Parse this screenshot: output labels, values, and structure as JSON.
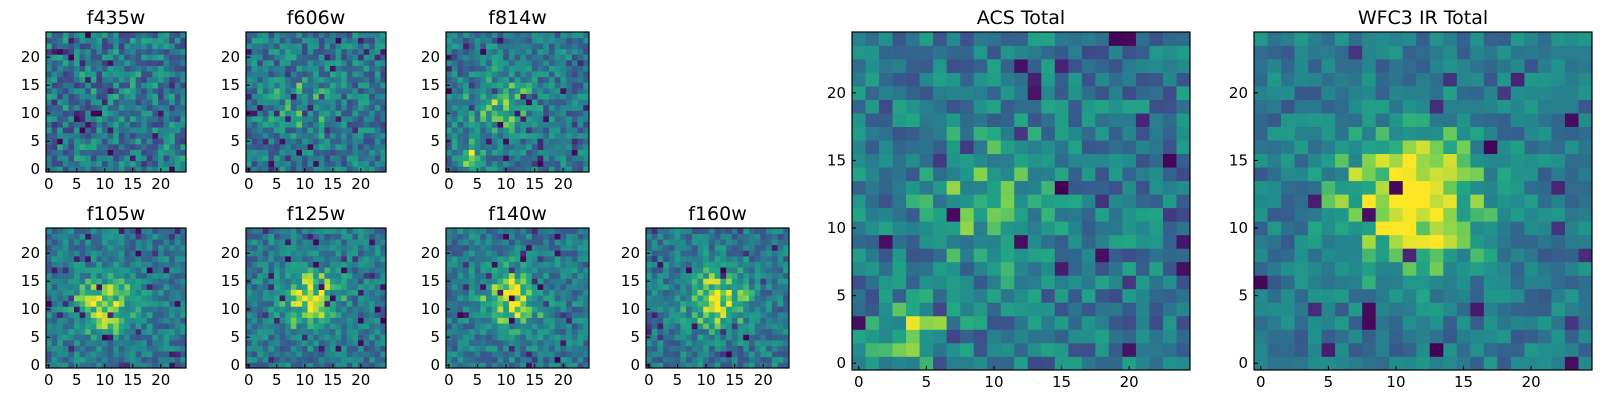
{
  "figure": {
    "background": "#ffffff"
  },
  "chart_data": [
    {
      "type": "heatmap",
      "title": "f435w",
      "grid_size": 25,
      "xlim": [
        0,
        24
      ],
      "ylim": [
        0,
        24
      ],
      "x_ticks": [
        "0",
        "5",
        "10",
        "15",
        "20"
      ],
      "y_ticks": [
        "0",
        "5",
        "10",
        "15",
        "20"
      ],
      "colormap": "viridis",
      "peak": "none",
      "center": [
        12,
        12
      ],
      "seed": 11,
      "structure": "uniform noise"
    },
    {
      "type": "heatmap",
      "title": "f606w",
      "grid_size": 25,
      "xlim": [
        0,
        24
      ],
      "ylim": [
        0,
        24
      ],
      "x_ticks": [
        "0",
        "5",
        "10",
        "15",
        "20"
      ],
      "y_ticks": [
        "0",
        "5",
        "10",
        "15",
        "20"
      ],
      "colormap": "viridis",
      "peak": "weak",
      "center": [
        10,
        12
      ],
      "seed": 23,
      "structure": "noise with faint bright spots"
    },
    {
      "type": "heatmap",
      "title": "f814w",
      "grid_size": 25,
      "xlim": [
        0,
        24
      ],
      "ylim": [
        0,
        24
      ],
      "x_ticks": [
        "0",
        "5",
        "10",
        "15",
        "20"
      ],
      "y_ticks": [
        "0",
        "5",
        "10",
        "15",
        "20"
      ],
      "colormap": "viridis",
      "peak": "moderate",
      "center": [
        9,
        12
      ],
      "seed": 37,
      "structure": "source near center, bright patch lower-left"
    },
    {
      "type": "heatmap",
      "title": "f105w",
      "grid_size": 25,
      "xlim": [
        0,
        24
      ],
      "ylim": [
        0,
        24
      ],
      "x_ticks": [
        "0",
        "5",
        "10",
        "15",
        "20"
      ],
      "y_ticks": [
        "0",
        "5",
        "10",
        "15",
        "20"
      ],
      "colormap": "viridis",
      "peak": "strong",
      "center": [
        10,
        11
      ],
      "seed": 41,
      "structure": "bright central source"
    },
    {
      "type": "heatmap",
      "title": "f125w",
      "grid_size": 25,
      "xlim": [
        0,
        24
      ],
      "ylim": [
        0,
        24
      ],
      "x_ticks": [
        "0",
        "5",
        "10",
        "15",
        "20"
      ],
      "y_ticks": [
        "0",
        "5",
        "10",
        "15",
        "20"
      ],
      "colormap": "viridis",
      "peak": "strong",
      "center": [
        11,
        12
      ],
      "seed": 53,
      "structure": "bright central source"
    },
    {
      "type": "heatmap",
      "title": "f140w",
      "grid_size": 25,
      "xlim": [
        0,
        24
      ],
      "ylim": [
        0,
        24
      ],
      "x_ticks": [
        "0",
        "5",
        "10",
        "15",
        "20"
      ],
      "y_ticks": [
        "0",
        "5",
        "10",
        "15",
        "20"
      ],
      "colormap": "viridis",
      "peak": "strong",
      "center": [
        11,
        12
      ],
      "seed": 67,
      "structure": "bright central source"
    },
    {
      "type": "heatmap",
      "title": "f160w",
      "grid_size": 25,
      "xlim": [
        0,
        24
      ],
      "ylim": [
        0,
        24
      ],
      "x_ticks": [
        "0",
        "5",
        "10",
        "15",
        "20"
      ],
      "y_ticks": [
        "0",
        "5",
        "10",
        "15",
        "20"
      ],
      "colormap": "viridis",
      "peak": "strong",
      "center": [
        12,
        12
      ],
      "seed": 79,
      "structure": "bright central source"
    },
    {
      "type": "heatmap",
      "title": "ACS Total",
      "grid_size": 25,
      "xlim": [
        0,
        24
      ],
      "ylim": [
        0,
        24
      ],
      "x_ticks": [
        "0",
        "5",
        "10",
        "15",
        "20"
      ],
      "y_ticks": [
        "0",
        "5",
        "10",
        "15",
        "20"
      ],
      "colormap": "viridis",
      "peak": "moderate",
      "center": [
        10,
        12
      ],
      "seed": 97,
      "structure": "central source, bright patch lower-left"
    },
    {
      "type": "heatmap",
      "title": "WFC3 IR Total",
      "grid_size": 25,
      "xlim": [
        0,
        24
      ],
      "ylim": [
        0,
        24
      ],
      "x_ticks": [
        "0",
        "5",
        "10",
        "15",
        "20"
      ],
      "y_ticks": [
        "0",
        "5",
        "10",
        "15",
        "20"
      ],
      "colormap": "viridis",
      "peak": "very strong",
      "center": [
        11,
        12
      ],
      "seed": 113,
      "structure": "bright central source, dark spots right"
    }
  ]
}
